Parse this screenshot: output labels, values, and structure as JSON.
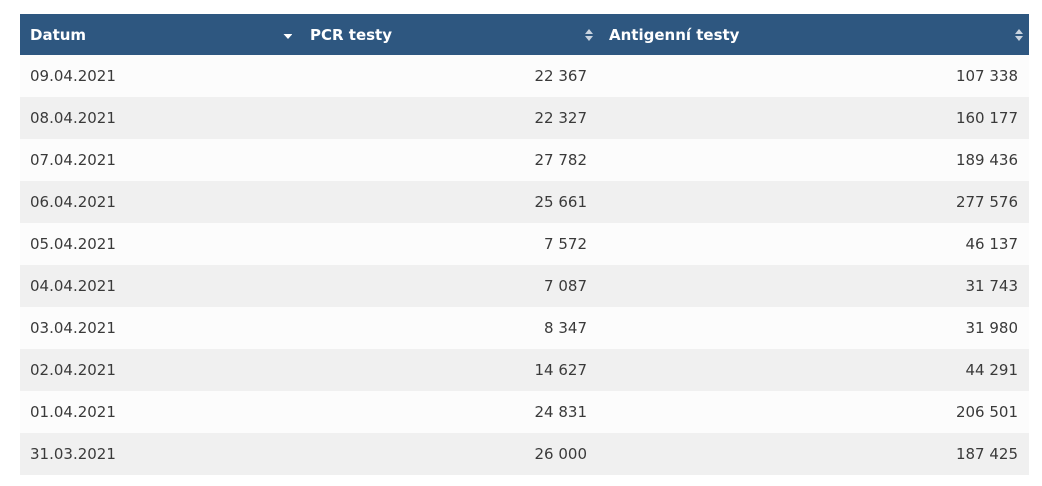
{
  "table": {
    "headers": {
      "date": "Datum",
      "pcr": "PCR testy",
      "antigen": "Antigenní testy"
    },
    "sort_icons": {
      "date": "sort-desc-icon",
      "pcr": "sort-both-icon",
      "antigen": "sort-both-icon"
    },
    "rows": [
      {
        "date": "09.04.2021",
        "pcr": "22 367",
        "antigen": "107 338"
      },
      {
        "date": "08.04.2021",
        "pcr": "22 327",
        "antigen": "160 177"
      },
      {
        "date": "07.04.2021",
        "pcr": "27 782",
        "antigen": "189 436"
      },
      {
        "date": "06.04.2021",
        "pcr": "25 661",
        "antigen": "277 576"
      },
      {
        "date": "05.04.2021",
        "pcr": "7 572",
        "antigen": "46 137"
      },
      {
        "date": "04.04.2021",
        "pcr": "7 087",
        "antigen": "31 743"
      },
      {
        "date": "03.04.2021",
        "pcr": "8 347",
        "antigen": "31 980"
      },
      {
        "date": "02.04.2021",
        "pcr": "14 627",
        "antigen": "44 291"
      },
      {
        "date": "01.04.2021",
        "pcr": "24 831",
        "antigen": "206 501"
      },
      {
        "date": "31.03.2021",
        "pcr": "26 000",
        "antigen": "187 425"
      }
    ]
  },
  "colors": {
    "header_bg": "#2e5780",
    "header_text": "#ffffff",
    "row_odd": "#fcfcfc",
    "row_even": "#f0f0f0",
    "text": "#3a3a3a"
  }
}
